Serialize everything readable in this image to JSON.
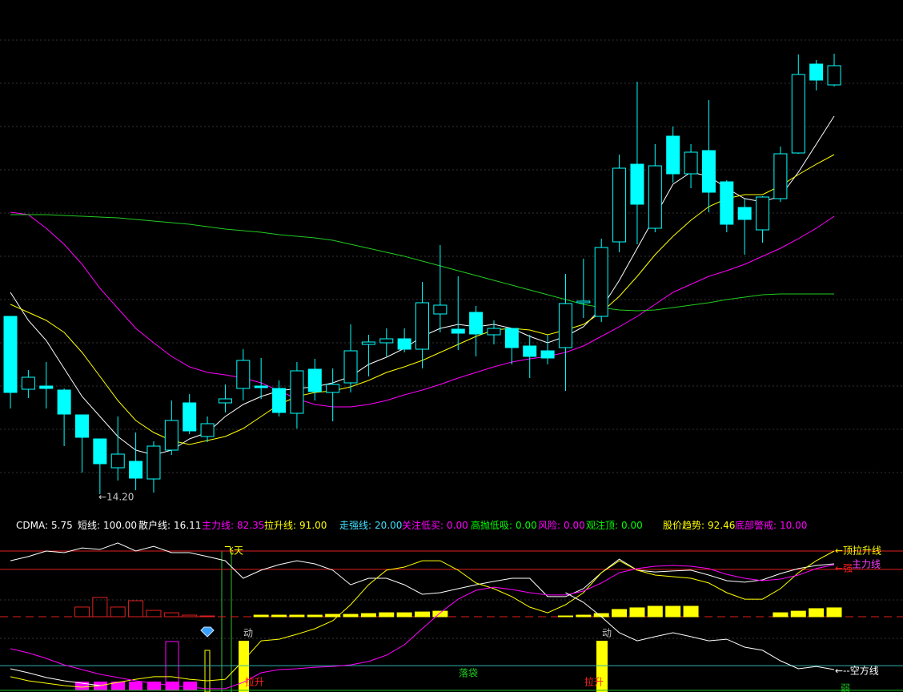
{
  "chart_data": [
    {
      "type": "candlestick",
      "color": "#00ffff",
      "ylim": [
        13.74,
        26.54
      ],
      "open": [
        18.64,
        16.82,
        16.9,
        16.8,
        16.18,
        15.58,
        14.86,
        15.02,
        14.58,
        15.3,
        16.48,
        15.64,
        16.48,
        16.84,
        16.9,
        16.84,
        16.22,
        17.32,
        16.74,
        16.98,
        17.94,
        17.98,
        18.08,
        17.82,
        18.7,
        18.32,
        18.74,
        18.18,
        18.34,
        17.9,
        17.78,
        17.86,
        18.98,
        18.64,
        20.5,
        22.44,
        20.84,
        23.14,
        22.2,
        22.78,
        22.0,
        21.36,
        20.8,
        21.58,
        22.72,
        24.94,
        24.42
      ],
      "high": [
        18.64,
        17.3,
        17.5,
        16.84,
        16.18,
        15.58,
        16.14,
        15.74,
        15.52,
        16.54,
        16.7,
        16.14,
        16.94,
        17.82,
        17.6,
        17.04,
        17.5,
        17.58,
        17.34,
        18.44,
        18.18,
        18.34,
        18.34,
        19.5,
        20.42,
        19.64,
        18.9,
        18.54,
        18.34,
        18.18,
        18.18,
        19.7,
        20.08,
        20.58,
        22.68,
        24.5,
        22.94,
        23.38,
        22.94,
        24.04,
        22.04,
        21.58,
        21.64,
        22.88,
        25.18,
        25.04,
        25.2
      ],
      "low": [
        16.34,
        16.6,
        16.34,
        15.4,
        14.74,
        14.2,
        14.54,
        14.3,
        14.24,
        15.18,
        15.7,
        15.5,
        16.24,
        16.54,
        16.58,
        16.14,
        15.84,
        16.54,
        16.02,
        16.74,
        17.14,
        17.64,
        17.74,
        17.34,
        18.24,
        17.8,
        17.64,
        17.94,
        17.44,
        17.1,
        17.44,
        16.78,
        18.6,
        18.5,
        20.24,
        20.44,
        20.74,
        21.98,
        21.84,
        21.24,
        20.74,
        20.18,
        20.48,
        21.5,
        22.7,
        24.28,
        24.38
      ],
      "close": [
        16.74,
        17.12,
        16.84,
        16.2,
        15.62,
        14.96,
        15.2,
        14.6,
        15.4,
        16.04,
        15.78,
        15.96,
        16.58,
        17.54,
        16.86,
        16.24,
        17.28,
        16.76,
        16.94,
        17.78,
        18.0,
        18.08,
        17.82,
        18.98,
        18.92,
        18.22,
        18.2,
        18.34,
        17.86,
        17.64,
        17.6,
        18.96,
        19.02,
        20.36,
        22.34,
        21.44,
        22.4,
        22.2,
        22.74,
        21.74,
        20.94,
        21.06,
        21.62,
        22.7,
        24.68,
        24.54,
        24.9
      ],
      "series": [
        {
          "color": "#ffffff",
          "values": [
            19.24,
            18.54,
            18.04,
            17.34,
            16.64,
            16.14,
            15.64,
            15.3,
            15.18,
            15.3,
            15.58,
            15.74,
            16.14,
            16.44,
            16.64,
            16.78,
            16.84,
            16.88,
            16.98,
            17.14,
            17.44,
            17.62,
            17.84,
            18.14,
            18.34,
            18.44,
            18.38,
            18.44,
            18.34,
            18.14,
            17.98,
            18.14,
            18.38,
            18.84,
            19.54,
            20.34,
            21.14,
            21.94,
            22.24,
            22.14,
            21.84,
            21.58,
            21.5,
            21.64,
            22.24,
            22.94,
            23.64
          ]
        },
        {
          "color": "#ffff00",
          "values": [
            18.94,
            18.74,
            18.54,
            18.24,
            17.74,
            17.14,
            16.54,
            16.04,
            15.74,
            15.54,
            15.44,
            15.54,
            15.64,
            15.84,
            16.14,
            16.44,
            16.64,
            16.74,
            16.78,
            16.88,
            17.04,
            17.24,
            17.38,
            17.54,
            17.74,
            17.94,
            18.14,
            18.3,
            18.34,
            18.3,
            18.18,
            18.3,
            18.44,
            18.74,
            19.14,
            19.64,
            20.18,
            20.64,
            21.04,
            21.38,
            21.58,
            21.68,
            21.68,
            21.9,
            22.18,
            22.44,
            22.68
          ]
        },
        {
          "color": "#ff00ff",
          "values": [
            21.24,
            21.18,
            20.84,
            20.44,
            19.94,
            19.34,
            18.84,
            18.34,
            17.98,
            17.64,
            17.38,
            17.24,
            17.18,
            17.1,
            16.98,
            16.78,
            16.58,
            16.44,
            16.38,
            16.38,
            16.44,
            16.54,
            16.68,
            16.8,
            16.94,
            17.1,
            17.24,
            17.38,
            17.5,
            17.58,
            17.64,
            17.74,
            17.9,
            18.14,
            18.38,
            18.64,
            18.94,
            19.24,
            19.44,
            19.64,
            19.78,
            19.94,
            20.14,
            20.34,
            20.58,
            20.84,
            21.14
          ]
        },
        {
          "color": "#22cc22",
          "values": [
            21.18,
            21.18,
            21.18,
            21.16,
            21.14,
            21.12,
            21.1,
            21.06,
            21.02,
            20.98,
            20.94,
            20.88,
            20.82,
            20.78,
            20.74,
            20.68,
            20.64,
            20.6,
            20.54,
            20.44,
            20.34,
            20.24,
            20.14,
            20.02,
            19.9,
            19.78,
            19.66,
            19.54,
            19.42,
            19.3,
            19.18,
            19.06,
            18.94,
            18.86,
            18.8,
            18.78,
            18.8,
            18.86,
            18.92,
            18.98,
            19.06,
            19.12,
            19.18,
            19.2,
            19.2,
            19.2,
            19.2
          ]
        }
      ],
      "annotations": [
        {
          "text": "←14.20",
          "color": "#c8c8c8"
        }
      ]
    },
    {
      "type": "line",
      "ylim": [
        1.94,
        102.64
      ],
      "readouts": [
        {
          "label": "CDMA:",
          "value": "5.75",
          "color": "#ffffff"
        },
        {
          "label": "短线:",
          "value": "100.00",
          "color": "#ffffff"
        },
        {
          "label": "散户线:",
          "value": "16.11",
          "color": "#ffffff"
        },
        {
          "label": "主力线:",
          "value": "82.35",
          "color": "#ff00ff"
        },
        {
          "label": "拉升线:",
          "value": "91.00",
          "color": "#ffff00"
        },
        {
          "label": "走强线:",
          "value": "20.00",
          "color": "#40e0ff"
        },
        {
          "label": "关注低买:",
          "value": "0.00",
          "color": "#ff00ff"
        },
        {
          "label": "高抛低吸:",
          "value": "0.00",
          "color": "#00ff00"
        },
        {
          "label": "风险:",
          "value": "0.00",
          "color": "#ff00ff"
        },
        {
          "label": "观注顶:",
          "value": "0.00",
          "color": "#00ff00"
        },
        {
          "label": "股价趋势:",
          "value": "92.46",
          "color": "#ffff00"
        },
        {
          "label": "底部警戒:",
          "value": "10.00",
          "color": "#ff00ff"
        }
      ],
      "hlines": [
        {
          "value": 91,
          "color": "#e02020"
        },
        {
          "value": 79.4,
          "color": "#e02020"
        },
        {
          "value": 49.5,
          "color": "#e02020",
          "dashed": true
        },
        {
          "value": 18.6,
          "color": "#30b0b0"
        },
        {
          "value": 3,
          "color": "#20c020"
        }
      ],
      "series": [
        {
          "color": "#ffffff",
          "values": [
            84.9,
            87.5,
            91.0,
            90.0,
            93.0,
            92.0,
            96.1,
            91.0,
            94.0,
            90.0,
            90.0,
            87.5,
            84.9,
            73.8,
            78.9,
            82.4,
            84.9,
            82.9,
            78.9,
            69.7,
            73.8,
            73.8,
            69.7,
            63.7,
            64.7,
            67.2,
            69.7,
            71.8,
            73.8,
            73.8,
            62.2,
            62.2,
            67.2,
            77.3,
            85.9,
            78.9,
            77.8,
            78.4,
            78.9,
            75.8,
            72.3,
            71.3,
            72.8,
            76.8,
            79.9,
            81.9,
            82.9
          ]
        },
        {
          "color": "#ffff00",
          "values": [
            11.6,
            9.0,
            7.5,
            6.0,
            5.0,
            6.0,
            8.0,
            10.0,
            11.6,
            11.6,
            10.0,
            9.0,
            10.0,
            21.7,
            34.3,
            35.3,
            38.4,
            41.9,
            47.0,
            57.1,
            69.7,
            78.9,
            80.9,
            84.9,
            84.9,
            78.9,
            70.8,
            67.2,
            62.2,
            55.6,
            52.0,
            57.1,
            64.7,
            77.3,
            84.9,
            78.9,
            75.8,
            74.8,
            73.8,
            70.8,
            64.7,
            60.6,
            60.6,
            67.2,
            77.3,
            84.9,
            91
          ]
        },
        {
          "color": "#ff00ff",
          "values": [
            29.3,
            26.7,
            23.2,
            19.1,
            16.1,
            13.1,
            11.1,
            9.0,
            7.5,
            6.0,
            5.0,
            4.0,
            4.0,
            8.0,
            14.1,
            16.1,
            16.6,
            17.6,
            18.1,
            19.1,
            21.2,
            25.2,
            31.8,
            41.9,
            52.0,
            60.6,
            66.2,
            68.2,
            66.7,
            64.7,
            63.2,
            63.2,
            65.7,
            70.8,
            77.3,
            79.9,
            81.4,
            81.9,
            81.4,
            79.9,
            76.3,
            73.8,
            72.3,
            73.3,
            75.8,
            79.9,
            82.35
          ]
        },
        {
          "color": "#ffffff",
          "values": [
            16.6,
            14.1,
            11.1,
            9.0,
            7.5,
            6.0,
            null,
            null,
            null,
            null,
            null,
            null,
            null,
            null,
            null,
            null,
            null,
            null,
            null,
            null,
            null,
            null,
            null,
            null,
            null,
            null,
            null,
            null,
            null,
            null,
            null,
            64.7,
            58.6,
            49.5,
            39.4,
            34.3,
            36.9,
            39.4,
            36.9,
            34.3,
            35.3,
            30.3,
            28.3,
            21.7,
            16.6,
            18.1,
            16.11
          ]
        }
      ],
      "bars": [
        {
          "color": "#e02020",
          "style": "outline",
          "values": [
            null,
            null,
            null,
            null,
            55.6,
            61.7,
            55.6,
            59.6,
            53.5,
            52.0,
            50.5,
            50.0,
            null,
            null,
            null,
            null,
            null,
            null,
            null,
            null,
            null,
            null,
            null,
            null,
            null,
            null,
            null,
            null,
            null,
            null,
            null,
            null,
            null,
            null,
            null,
            null,
            null,
            null,
            null,
            null,
            null,
            null,
            null,
            null,
            null,
            null,
            null
          ]
        },
        {
          "color": "#ffff00",
          "style": "filled",
          "values": [
            null,
            null,
            null,
            null,
            null,
            null,
            null,
            null,
            null,
            null,
            null,
            null,
            null,
            null,
            50.5,
            50.5,
            50.5,
            50.5,
            51.0,
            51.0,
            51.5,
            52.0,
            52.0,
            52.5,
            53.0,
            null,
            null,
            null,
            null,
            null,
            null,
            50.0,
            50.5,
            51.5,
            54.1,
            55.1,
            56.1,
            56.1,
            56.1,
            null,
            null,
            null,
            null,
            52.0,
            53.0,
            54.6,
            55.1
          ]
        }
      ],
      "annotations": [
        {
          "text": "飞天",
          "color": "#ffff00"
        },
        {
          "text": "动",
          "color": "#c0c0c0"
        },
        {
          "text": "动",
          "color": "#c0c0c0"
        },
        {
          "text": "拉升",
          "color": "#ff2020"
        },
        {
          "text": "拉升",
          "color": "#ff2020"
        },
        {
          "text": "落袋",
          "color": "#20d020"
        },
        {
          "text": "←顶拉升线",
          "color": "#ffff00"
        },
        {
          "text": "←强",
          "color": "#ff2020"
        },
        {
          "text": "主力线",
          "color": "#ff40ff"
        },
        {
          "text": "←--空方线",
          "color": "#ffffff"
        },
        {
          "text": "弱",
          "color": "#20d020"
        }
      ]
    }
  ]
}
